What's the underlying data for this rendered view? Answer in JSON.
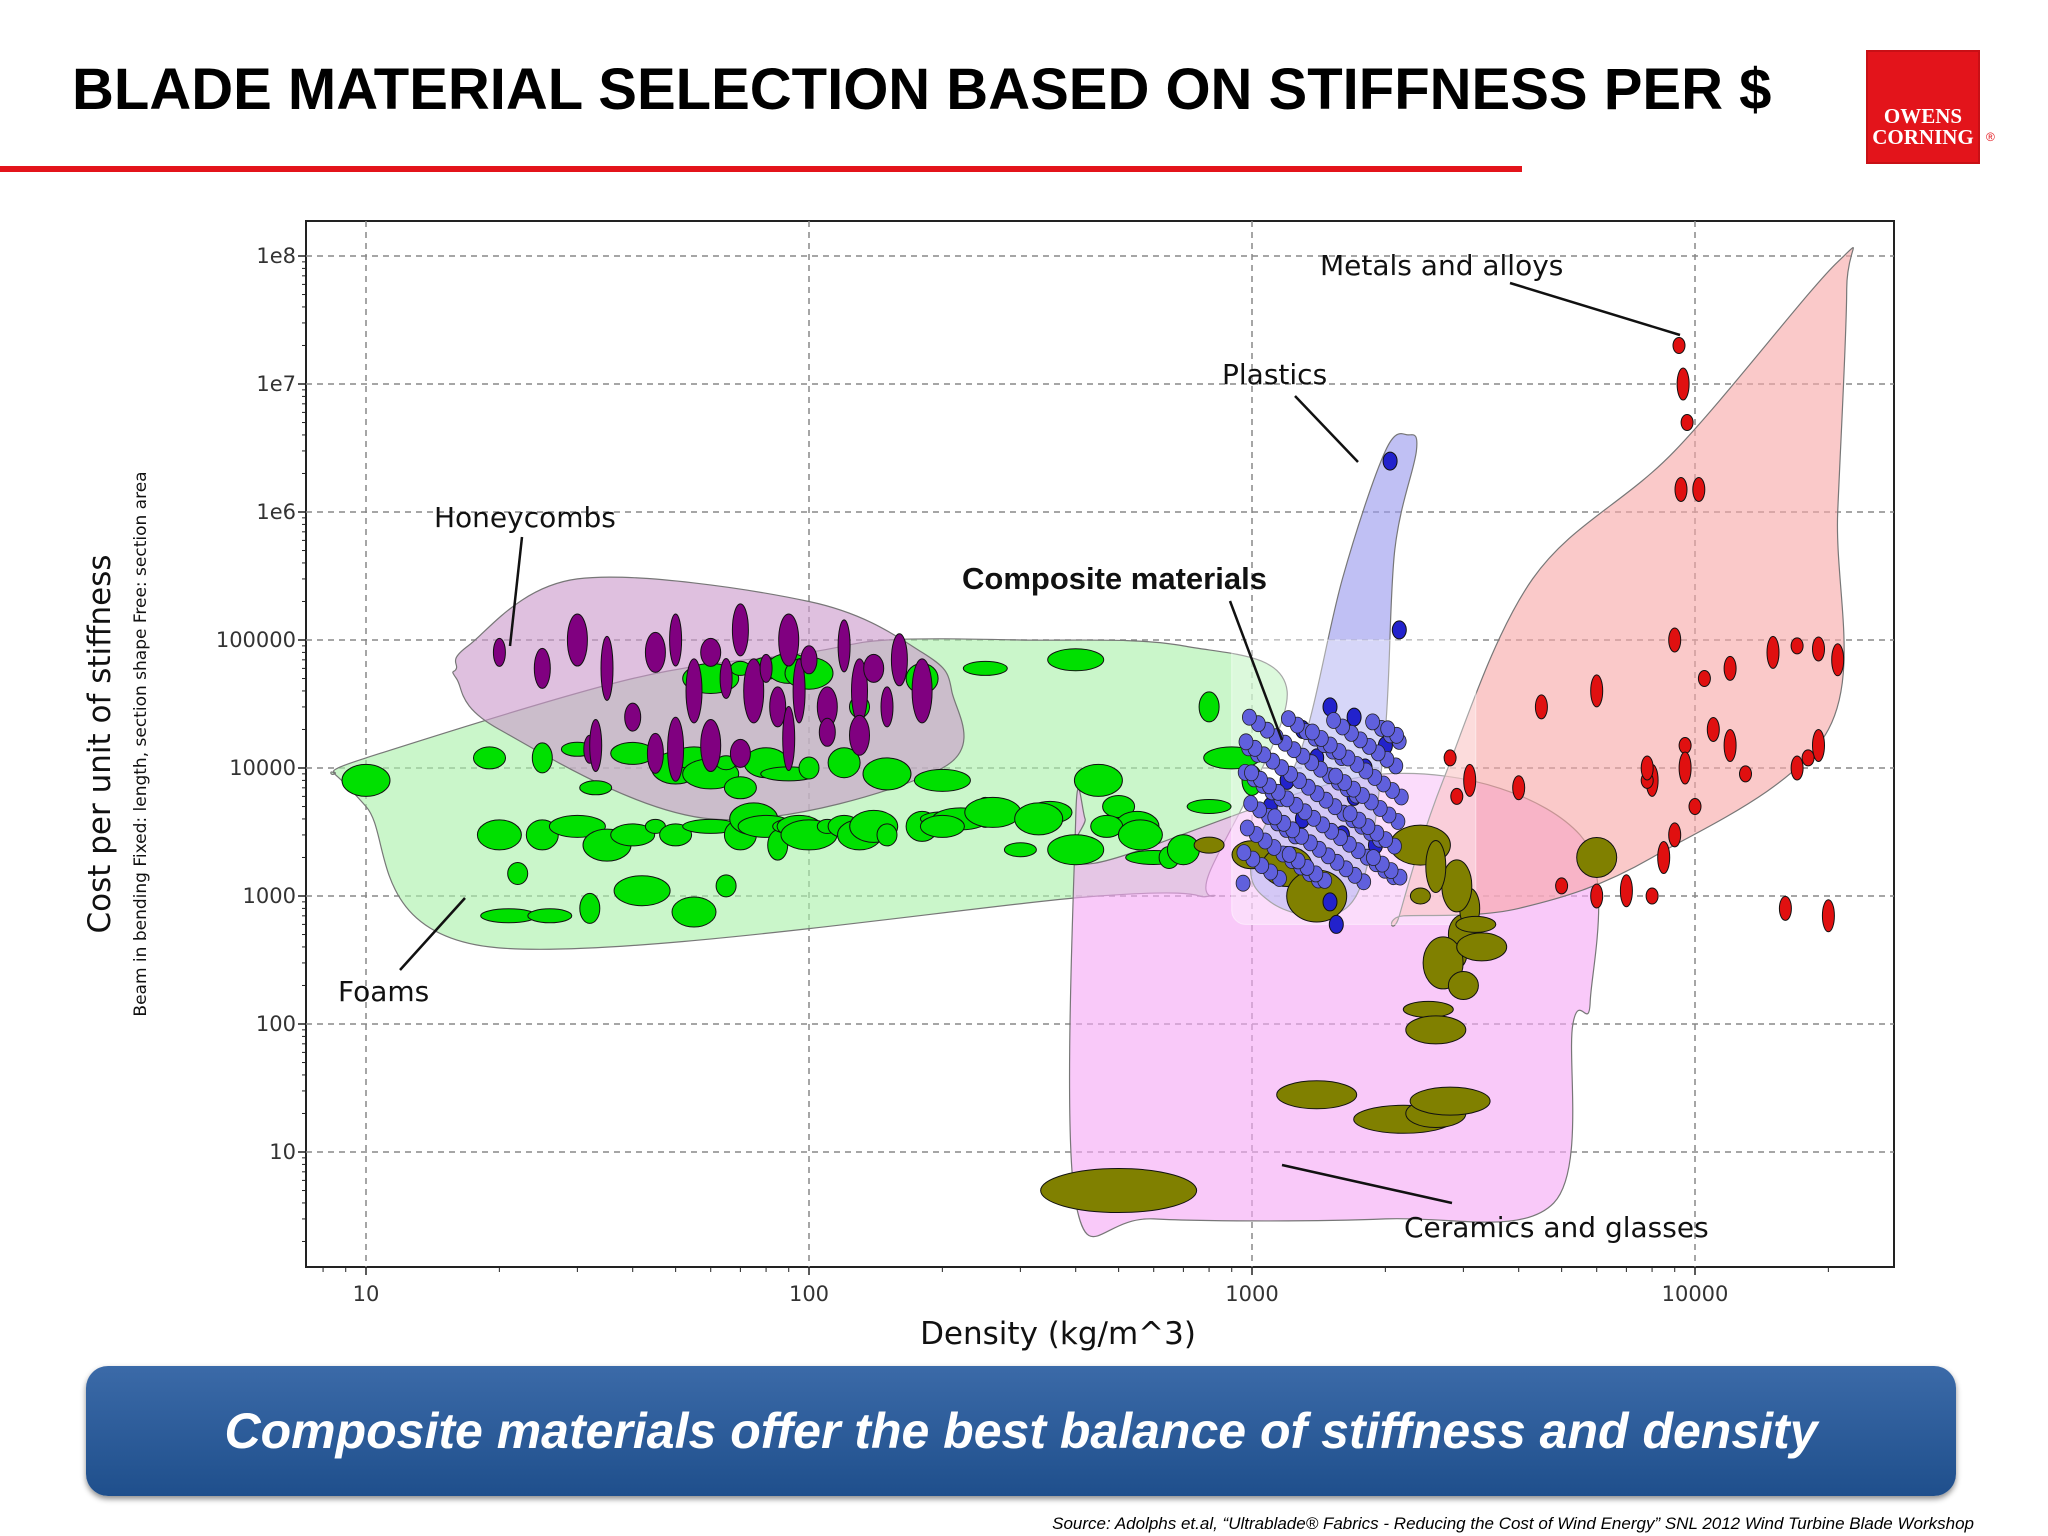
{
  "slide": {
    "title": "BLADE MATERIAL SELECTION BASED ON STIFFNESS PER $",
    "logo_lines": [
      "OWENS",
      "CORNING"
    ],
    "logo_reg": "®",
    "banner": "Composite materials offer the best balance of stiffness and density",
    "source": "Source:  Adolphs et.al, “Ultrablade® Fabrics - Reducing the Cost of Wind Energy” SNL 2012 Wind Turbine Blade Workshop",
    "colors": {
      "accent_red": "#e3141b",
      "banner_blue": "#2a5a98"
    }
  },
  "chart_data": {
    "type": "scatter",
    "x_scale": "log",
    "y_scale": "log",
    "xlabel": "Density (kg/m^3)",
    "ylabel": "Cost per unit of stiffness",
    "ylabel_note": "Beam in bending   Fixed: length, section shape   Free: section area",
    "xlim": [
      8,
      30000
    ],
    "ylim": [
      2,
      200000000
    ],
    "x_ticks": [
      10,
      100,
      1000,
      10000
    ],
    "x_tick_labels": [
      "10",
      "100",
      "1000",
      "10000"
    ],
    "y_ticks": [
      10,
      100,
      1000,
      10000,
      100000,
      1000000,
      10000000,
      100000000
    ],
    "y_tick_labels": [
      "10",
      "100",
      "1000",
      "10000",
      "100000",
      "1e6",
      "1e7",
      "1e8"
    ],
    "grid": true,
    "families": [
      {
        "name": "Metals and alloys",
        "fill": "#f7a8a8",
        "marker": "#e01010",
        "hull": [
          [
            2150,
            700
          ],
          [
            2700,
            8000
          ],
          [
            4300,
            300000
          ],
          [
            9000,
            3000000
          ],
          [
            21000,
            90000000
          ],
          [
            22000,
            55000000
          ],
          [
            21000,
            1000000
          ],
          [
            20000,
            20000
          ],
          [
            8000,
            2000
          ],
          [
            4000,
            800
          ],
          [
            2200,
            700
          ]
        ],
        "points": [
          [
            10500,
            50000
          ],
          [
            12000,
            60000
          ],
          [
            15000,
            80000
          ],
          [
            17000,
            90000
          ],
          [
            19000,
            85000
          ],
          [
            21000,
            70000
          ],
          [
            9500,
            15000
          ],
          [
            11000,
            20000
          ],
          [
            8000,
            8000
          ],
          [
            9600,
            5000000
          ],
          [
            9000,
            100000
          ],
          [
            9500,
            10000
          ],
          [
            10000,
            5000
          ],
          [
            9000,
            3000
          ],
          [
            8500,
            2000
          ],
          [
            5000,
            1200
          ],
          [
            6000,
            1000
          ],
          [
            7000,
            1100
          ],
          [
            8000,
            1000
          ],
          [
            16000,
            800
          ],
          [
            20000,
            700
          ],
          [
            2900,
            6000
          ],
          [
            4000,
            7000
          ],
          [
            3100,
            8000
          ],
          [
            2800,
            12000
          ],
          [
            4500,
            30000
          ],
          [
            6000,
            40000
          ],
          [
            7800,
            8000
          ],
          [
            7800,
            10000
          ],
          [
            19000,
            15000
          ],
          [
            18000,
            12000
          ],
          [
            17000,
            10000
          ],
          [
            12000,
            15000
          ],
          [
            13000,
            9000
          ],
          [
            10200,
            1500000
          ],
          [
            9400,
            10000000
          ],
          [
            9200,
            20000000
          ],
          [
            9300,
            1500000
          ]
        ]
      },
      {
        "name": "Plastics",
        "fill": "#9999ee",
        "marker": "#2222cc",
        "hull": [
          [
            1000,
            2000
          ],
          [
            1300,
            15000
          ],
          [
            1600,
            300000
          ],
          [
            2000,
            3000000
          ],
          [
            2250,
            4000000
          ],
          [
            2350,
            3000000
          ],
          [
            2100,
            500000
          ],
          [
            2000,
            20000
          ],
          [
            1800,
            1500
          ],
          [
            1500,
            700
          ],
          [
            1100,
            900
          ]
        ],
        "points": [
          [
            2050,
            2500000
          ],
          [
            2150,
            120000
          ],
          [
            1300,
            20000
          ],
          [
            1500,
            30000
          ],
          [
            1700,
            25000
          ],
          [
            1400,
            12000
          ],
          [
            1200,
            8000
          ],
          [
            1100,
            5000
          ],
          [
            1300,
            4000
          ],
          [
            1600,
            3000
          ],
          [
            1900,
            2500
          ],
          [
            2000,
            15000
          ],
          [
            1800,
            10000
          ],
          [
            1700,
            6000
          ],
          [
            1500,
            900
          ],
          [
            1550,
            600
          ]
        ]
      },
      {
        "name": "Ceramics and glasses",
        "fill": "#f5a8f5",
        "marker": "#808000",
        "hull": [
          [
            400,
            4000
          ],
          [
            420,
            4000
          ],
          [
            440,
            1800
          ],
          [
            2000,
            9000
          ],
          [
            5500,
            3000
          ],
          [
            5800,
            150
          ],
          [
            5300,
            100
          ],
          [
            4800,
            4
          ],
          [
            2000,
            3
          ],
          [
            600,
            3
          ],
          [
            400,
            4
          ]
        ],
        "points": [
          [
            500,
            5
          ],
          [
            1400,
            28
          ],
          [
            2200,
            18
          ],
          [
            2600,
            20
          ],
          [
            2800,
            25
          ],
          [
            2900,
            350
          ],
          [
            3000,
            500
          ],
          [
            2700,
            300
          ],
          [
            2500,
            130
          ],
          [
            2600,
            90
          ],
          [
            3100,
            800
          ],
          [
            2900,
            1200
          ],
          [
            3200,
            600
          ],
          [
            3300,
            400
          ],
          [
            2400,
            2500
          ],
          [
            2600,
            1700
          ],
          [
            800,
            2500
          ],
          [
            1000,
            2100
          ],
          [
            1200,
            1700
          ],
          [
            1400,
            1000
          ],
          [
            2400,
            1000
          ],
          [
            3000,
            200
          ],
          [
            6000,
            2000
          ]
        ]
      },
      {
        "name": "Honeycombs",
        "fill": "#cc99cc",
        "marker": "#800080",
        "hull": [
          [
            16,
            60000
          ],
          [
            17,
            90000
          ],
          [
            30,
            300000
          ],
          [
            100,
            200000
          ],
          [
            180,
            80000
          ],
          [
            210,
            40000
          ],
          [
            200,
            10000
          ],
          [
            60,
            4000
          ],
          [
            20,
            20000
          ],
          [
            16,
            50000
          ]
        ],
        "points": [
          [
            20,
            80000
          ],
          [
            25,
            60000
          ],
          [
            30,
            100000
          ],
          [
            35,
            60000
          ],
          [
            40,
            25000
          ],
          [
            45,
            80000
          ],
          [
            50,
            100000
          ],
          [
            55,
            40000
          ],
          [
            60,
            80000
          ],
          [
            65,
            50000
          ],
          [
            70,
            120000
          ],
          [
            75,
            40000
          ],
          [
            80,
            60000
          ],
          [
            85,
            30000
          ],
          [
            90,
            100000
          ],
          [
            95,
            40000
          ],
          [
            100,
            70000
          ],
          [
            110,
            30000
          ],
          [
            120,
            90000
          ],
          [
            130,
            40000
          ],
          [
            140,
            60000
          ],
          [
            150,
            30000
          ],
          [
            160,
            70000
          ],
          [
            180,
            40000
          ],
          [
            32,
            14000
          ],
          [
            45,
            13000
          ],
          [
            60,
            15000
          ],
          [
            90,
            17000
          ],
          [
            110,
            19000
          ],
          [
            130,
            18000
          ],
          [
            33,
            15000
          ],
          [
            50,
            14000
          ],
          [
            70,
            13000
          ]
        ]
      },
      {
        "name": "Foams",
        "fill": "#aaf0aa",
        "marker": "#00e000",
        "hull": [
          [
            8.5,
            9000
          ],
          [
            10,
            5000
          ],
          [
            19,
            400
          ],
          [
            450,
            1000
          ],
          [
            800,
            1000
          ],
          [
            800,
            1500
          ],
          [
            1200,
            40000
          ],
          [
            700,
            90000
          ],
          [
            300,
            100000
          ],
          [
            150,
            100000
          ],
          [
            100,
            80000
          ],
          [
            40,
            50000
          ],
          [
            10,
            12000
          ],
          [
            8.5,
            9000
          ]
        ],
        "points": [
          [
            10,
            8000
          ],
          [
            19,
            12000
          ],
          [
            20,
            3000
          ],
          [
            21,
            700
          ],
          [
            22,
            1500
          ],
          [
            25,
            3000
          ],
          [
            26,
            700
          ],
          [
            30,
            3500
          ],
          [
            32,
            800
          ],
          [
            35,
            2500
          ],
          [
            40,
            3000
          ],
          [
            42,
            1100
          ],
          [
            45,
            3500
          ],
          [
            50,
            3000
          ],
          [
            55,
            750
          ],
          [
            60,
            3500
          ],
          [
            65,
            1200
          ],
          [
            70,
            3000
          ],
          [
            75,
            4000
          ],
          [
            80,
            3500
          ],
          [
            85,
            2500
          ],
          [
            90,
            3500
          ],
          [
            95,
            3500
          ],
          [
            100,
            3000
          ],
          [
            110,
            3500
          ],
          [
            120,
            3500
          ],
          [
            130,
            3000
          ],
          [
            140,
            3500
          ],
          [
            150,
            3000
          ],
          [
            180,
            3500
          ],
          [
            200,
            4000
          ],
          [
            220,
            4000
          ],
          [
            250,
            4500
          ],
          [
            300,
            2300
          ],
          [
            350,
            4500
          ],
          [
            400,
            2300
          ],
          [
            450,
            8000
          ],
          [
            500,
            5000
          ],
          [
            550,
            3500
          ],
          [
            600,
            2000
          ],
          [
            650,
            2000
          ],
          [
            700,
            2300
          ],
          [
            800,
            5000
          ],
          [
            900,
            12000
          ],
          [
            1000,
            8000
          ],
          [
            50,
            10000
          ],
          [
            55,
            12000
          ],
          [
            60,
            9000
          ],
          [
            65,
            11000
          ],
          [
            70,
            7000
          ],
          [
            80,
            11000
          ],
          [
            90,
            9000
          ],
          [
            100,
            10000
          ],
          [
            120,
            11000
          ],
          [
            150,
            9000
          ],
          [
            200,
            8000
          ],
          [
            25,
            12000
          ],
          [
            30,
            14000
          ],
          [
            40,
            13000
          ],
          [
            60,
            50000
          ],
          [
            70,
            60000
          ],
          [
            80,
            60000
          ],
          [
            90,
            60000
          ],
          [
            100,
            55000
          ],
          [
            130,
            30000
          ],
          [
            180,
            50000
          ],
          [
            250,
            60000
          ],
          [
            400,
            70000
          ],
          [
            800,
            30000
          ],
          [
            33,
            7000
          ],
          [
            200,
            3500
          ],
          [
            260,
            4500
          ],
          [
            330,
            4000
          ],
          [
            470,
            3500
          ],
          [
            560,
            3000
          ]
        ]
      }
    ],
    "highlight": {
      "name": "Composite materials",
      "x_range": [
        900,
        3200
      ],
      "y_range": [
        600,
        100000
      ]
    },
    "annotations": [
      {
        "text": "Metals and alloys",
        "style": "normal"
      },
      {
        "text": "Plastics",
        "style": "normal"
      },
      {
        "text": "Honeycombs",
        "style": "normal"
      },
      {
        "text": "Composite materials",
        "style": "bold"
      },
      {
        "text": "Foams",
        "style": "normal"
      },
      {
        "text": "Ceramics and glasses",
        "style": "normal"
      }
    ]
  }
}
